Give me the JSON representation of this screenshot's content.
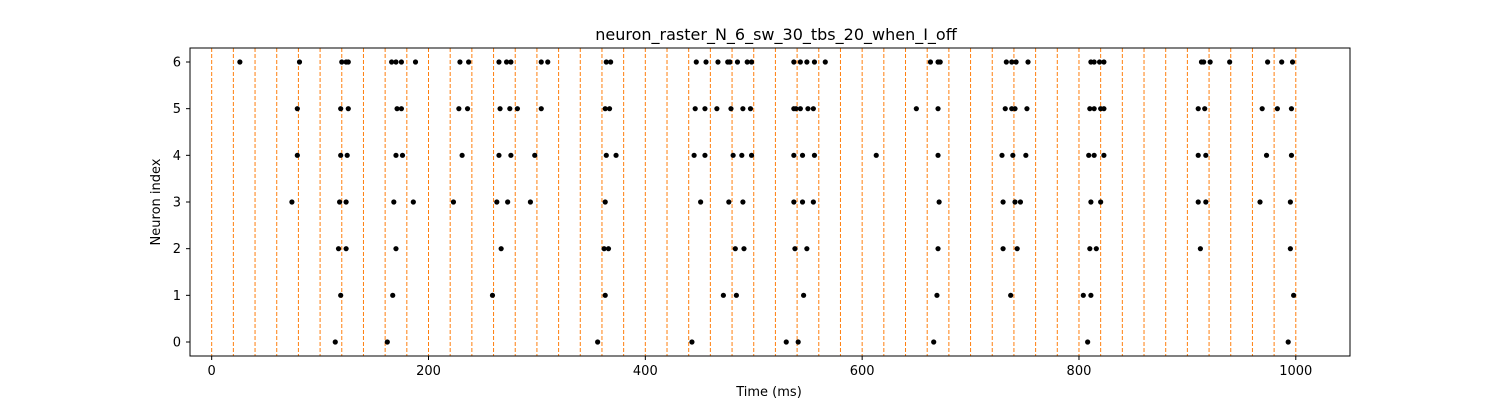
{
  "chart_data": {
    "type": "scatter",
    "title": "neuron_raster_N_6_sw_30_tbs_20_when_I_off",
    "xlabel": "Time (ms)",
    "ylabel": "Neuron index",
    "xlim": [
      -20,
      1050
    ],
    "ylim": [
      -0.3,
      6.3
    ],
    "xticks": [
      0,
      200,
      400,
      600,
      800,
      1000
    ],
    "yticks": [
      0,
      1,
      2,
      3,
      4,
      5,
      6
    ],
    "grid": false,
    "legend": "none",
    "marker_color": "#000000",
    "vline_color": "#ff7f0e",
    "vlines": [
      0,
      20,
      40,
      60,
      80,
      100,
      120,
      140,
      160,
      180,
      200,
      220,
      240,
      260,
      280,
      300,
      320,
      340,
      360,
      380,
      400,
      420,
      440,
      460,
      480,
      500,
      520,
      540,
      560,
      580,
      600,
      620,
      640,
      660,
      680,
      700,
      720,
      740,
      760,
      780,
      800,
      820,
      840,
      860,
      880,
      900,
      920,
      940,
      960,
      980,
      1000
    ],
    "series": [
      {
        "neuron": 0,
        "spikes": [
          114,
          162,
          356,
          443,
          530,
          541,
          666,
          808,
          993
        ]
      },
      {
        "neuron": 1,
        "spikes": [
          119,
          167,
          259,
          363,
          472,
          484,
          546,
          669,
          737,
          804,
          811,
          998
        ]
      },
      {
        "neuron": 2,
        "spikes": [
          117,
          124,
          170,
          267,
          362,
          366,
          483,
          491,
          538,
          549,
          670,
          730,
          743,
          810,
          816,
          912,
          995
        ]
      },
      {
        "neuron": 3,
        "spikes": [
          74,
          118,
          124,
          168,
          186,
          223,
          263,
          273,
          294,
          363,
          451,
          477,
          490,
          537,
          545,
          555,
          671,
          730,
          741,
          746,
          811,
          820,
          910,
          917,
          967,
          995
        ]
      },
      {
        "neuron": 4,
        "spikes": [
          79,
          119,
          125,
          170,
          176,
          231,
          265,
          276,
          298,
          364,
          373,
          445,
          455,
          481,
          489,
          498,
          537,
          545,
          556,
          613,
          670,
          729,
          739,
          751,
          809,
          814,
          823,
          910,
          917,
          973,
          996
        ]
      },
      {
        "neuron": 5,
        "spikes": [
          79,
          119,
          126,
          171,
          175,
          228,
          236,
          266,
          275,
          282,
          304,
          363,
          367,
          446,
          455,
          466,
          479,
          490,
          497,
          537,
          539,
          543,
          550,
          555,
          650,
          670,
          732,
          738,
          741,
          752,
          810,
          814,
          820,
          823,
          910,
          916,
          969,
          983,
          996
        ]
      },
      {
        "neuron": 6,
        "spikes": [
          26,
          81,
          120,
          124,
          126,
          166,
          170,
          175,
          188,
          229,
          237,
          265,
          272,
          276,
          304,
          310,
          364,
          368,
          447,
          456,
          467,
          476,
          478,
          485,
          494,
          498,
          537,
          543,
          549,
          556,
          566,
          663,
          670,
          672,
          733,
          738,
          742,
          753,
          811,
          814,
          819,
          823,
          913,
          915,
          921,
          939,
          974,
          987,
          997
        ]
      }
    ]
  }
}
